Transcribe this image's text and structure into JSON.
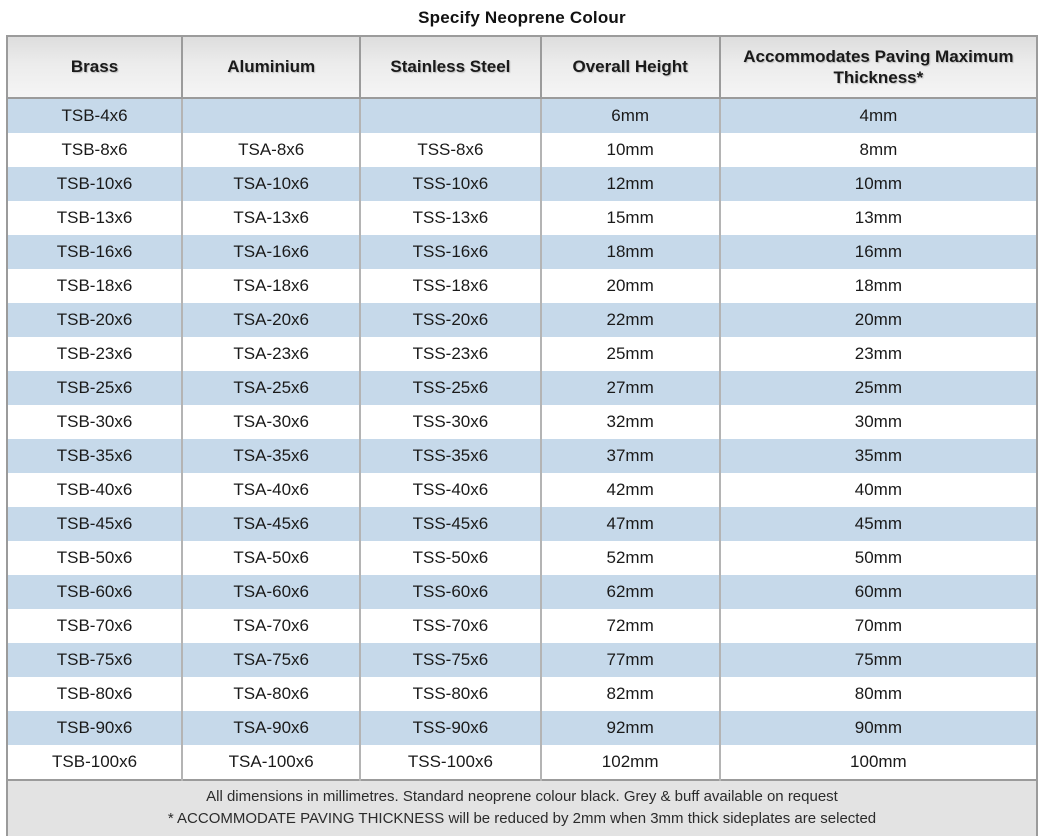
{
  "title": "Specify Neoprene Colour",
  "table": {
    "columns": [
      "Brass",
      "Aluminium",
      "Stainless Steel",
      "Overall Height",
      "Accommodates Paving Maximum Thickness*"
    ],
    "rows": [
      [
        "TSB-4x6",
        "",
        "",
        "6mm",
        "4mm"
      ],
      [
        "TSB-8x6",
        "TSA-8x6",
        "TSS-8x6",
        "10mm",
        "8mm"
      ],
      [
        "TSB-10x6",
        "TSA-10x6",
        "TSS-10x6",
        "12mm",
        "10mm"
      ],
      [
        "TSB-13x6",
        "TSA-13x6",
        "TSS-13x6",
        "15mm",
        "13mm"
      ],
      [
        "TSB-16x6",
        "TSA-16x6",
        "TSS-16x6",
        "18mm",
        "16mm"
      ],
      [
        "TSB-18x6",
        "TSA-18x6",
        "TSS-18x6",
        "20mm",
        "18mm"
      ],
      [
        "TSB-20x6",
        "TSA-20x6",
        "TSS-20x6",
        "22mm",
        "20mm"
      ],
      [
        "TSB-23x6",
        "TSA-23x6",
        "TSS-23x6",
        "25mm",
        "23mm"
      ],
      [
        "TSB-25x6",
        "TSA-25x6",
        "TSS-25x6",
        "27mm",
        "25mm"
      ],
      [
        "TSB-30x6",
        "TSA-30x6",
        "TSS-30x6",
        "32mm",
        "30mm"
      ],
      [
        "TSB-35x6",
        "TSA-35x6",
        "TSS-35x6",
        "37mm",
        "35mm"
      ],
      [
        "TSB-40x6",
        "TSA-40x6",
        "TSS-40x6",
        "42mm",
        "40mm"
      ],
      [
        "TSB-45x6",
        "TSA-45x6",
        "TSS-45x6",
        "47mm",
        "45mm"
      ],
      [
        "TSB-50x6",
        "TSA-50x6",
        "TSS-50x6",
        "52mm",
        "50mm"
      ],
      [
        "TSB-60x6",
        "TSA-60x6",
        "TSS-60x6",
        "62mm",
        "60mm"
      ],
      [
        "TSB-70x6",
        "TSA-70x6",
        "TSS-70x6",
        "72mm",
        "70mm"
      ],
      [
        "TSB-75x6",
        "TSA-75x6",
        "TSS-75x6",
        "77mm",
        "75mm"
      ],
      [
        "TSB-80x6",
        "TSA-80x6",
        "TSS-80x6",
        "82mm",
        "80mm"
      ],
      [
        "TSB-90x6",
        "TSA-90x6",
        "TSS-90x6",
        "92mm",
        "90mm"
      ],
      [
        "TSB-100x6",
        "TSA-100x6",
        "TSS-100x6",
        "102mm",
        "100mm"
      ]
    ],
    "footnotes": [
      "All dimensions in millimetres. Standard neoprene colour black. Grey & buff available on request",
      "* ACCOMMODATE PAVING THICKNESS will be reduced by 2mm when 3mm thick sideplates are selected"
    ]
  },
  "colors": {
    "row_stripe_blue": "#c6d9ea",
    "row_white": "#ffffff",
    "header_gradient_top": "#dddddd",
    "header_gradient_bottom": "#f5f5f5",
    "footer_background": "#e3e3e3",
    "border_dark": "#9b9b9b",
    "border_light": "#b4b4b4",
    "text": "#1a1a1a"
  }
}
